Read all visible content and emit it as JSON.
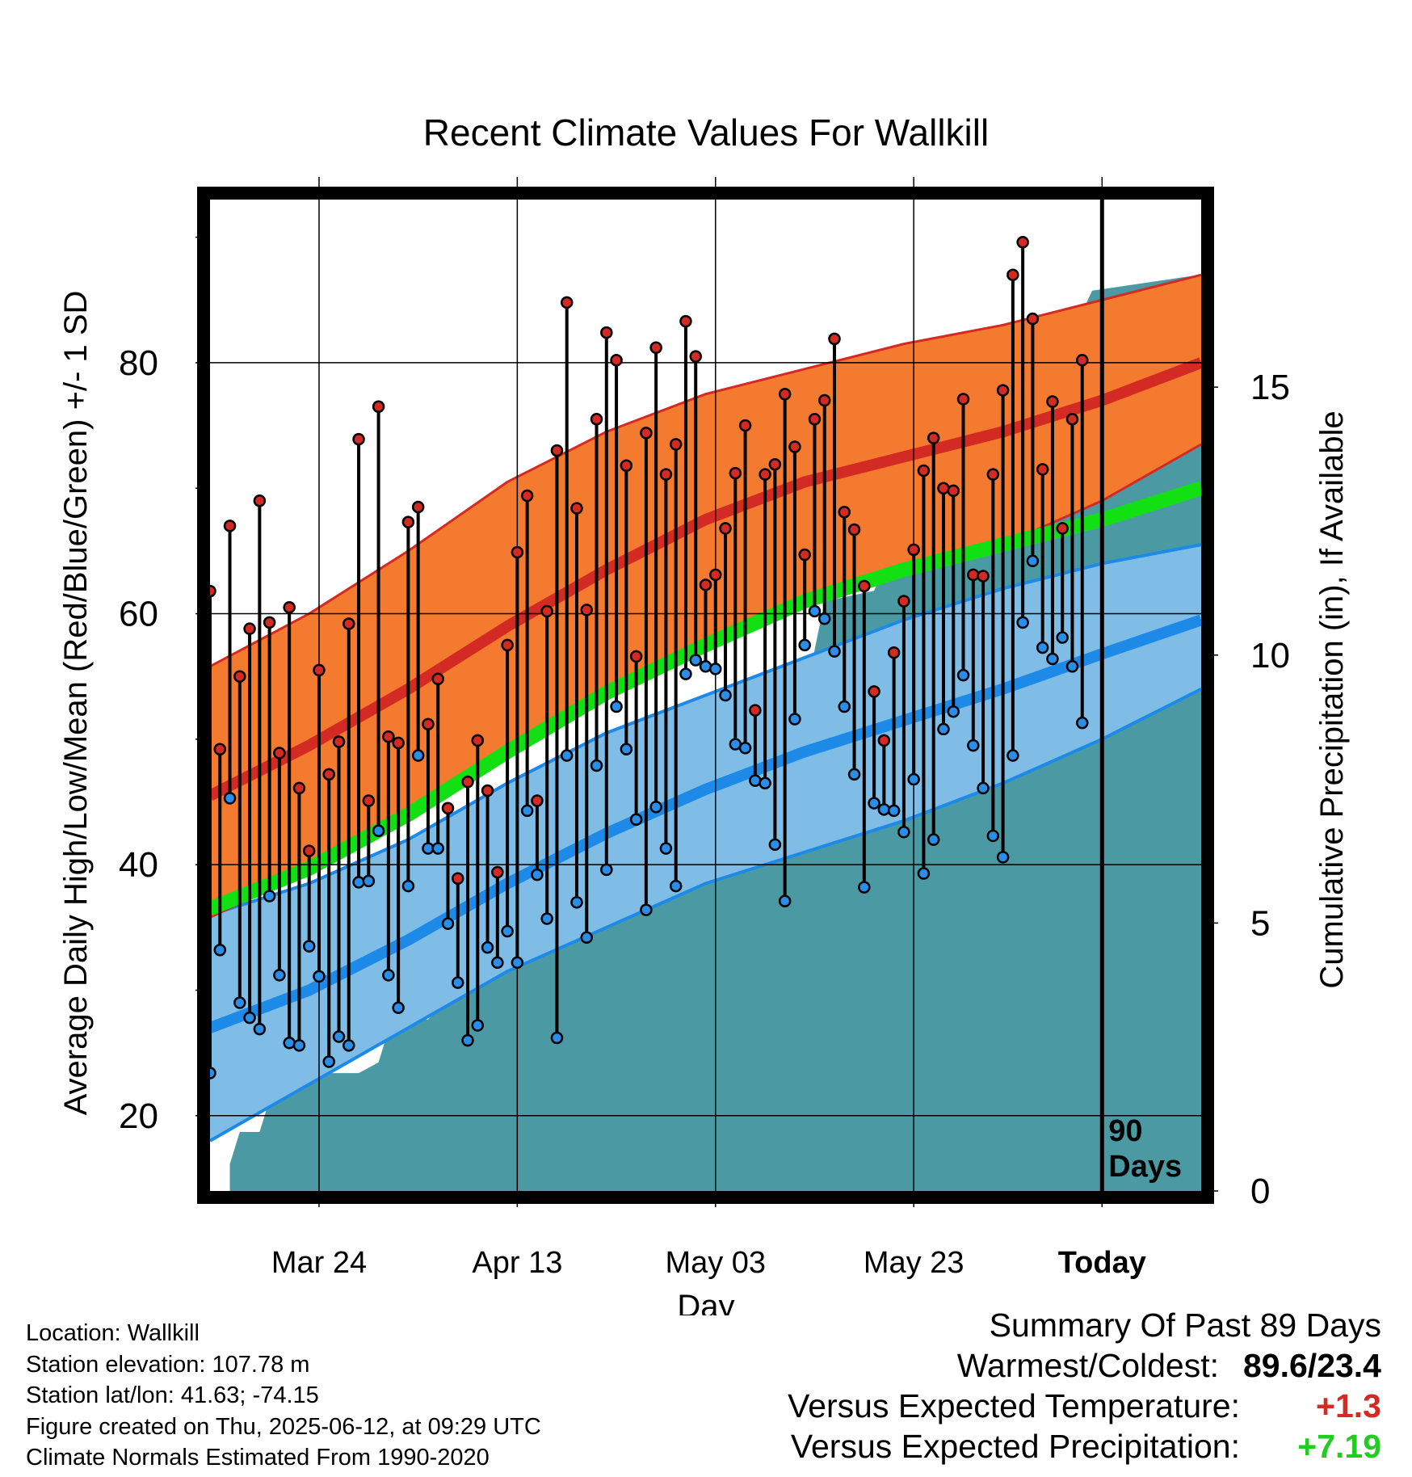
{
  "chart_data": {
    "type": "line",
    "title": "Recent Climate Values For Wallkill",
    "xlabel": "Day",
    "ylabel": "Average Daily High/Low/Mean (Red/Blue/Green) +/- 1 SD",
    "y2label": "Cumulative Precipitation (in), If Available",
    "x_tick_labels": [
      "Mar 24",
      "Apr 13",
      "May 03",
      "May 23",
      "Today"
    ],
    "x_day_start": "2025-03-13",
    "today_label": "90\nDays",
    "ylim": [
      14,
      93
    ],
    "yticks": [
      20,
      40,
      60,
      80
    ],
    "y2lim": [
      0,
      18.5
    ],
    "y2ticks": [
      0,
      5,
      10,
      15
    ],
    "grid": true,
    "colors": {
      "high_band": "#f47a30",
      "high_band_edge": "#d42a24",
      "high_mean": "#d42a24",
      "low_band": "#7fbde6",
      "low_band_edge": "#1d8ae8",
      "low_mean": "#1d8ae8",
      "mean_line": "#12e012",
      "precip": "#4b9aa3",
      "high_dot": "#d42a24",
      "low_dot": "#2a8ee8"
    },
    "normals": {
      "x": [
        0,
        10,
        20,
        30,
        40,
        50,
        60,
        70,
        80,
        90,
        100
      ],
      "high_mean": [
        45.5,
        49.5,
        54,
        59,
        63.5,
        67.5,
        70.5,
        72.5,
        74.5,
        77,
        80
      ],
      "high_upper": [
        55.8,
        60,
        65,
        70.5,
        74.5,
        77.5,
        79.5,
        81.5,
        83,
        85,
        87
      ],
      "high_lower": [
        35.8,
        39.5,
        44,
        49,
        53.5,
        57.5,
        60.5,
        63,
        65.5,
        69,
        73.5
      ],
      "mean": [
        36.5,
        39.7,
        44,
        49,
        53.7,
        57.5,
        61,
        63.5,
        65.5,
        67.5,
        70
      ],
      "low_mean": [
        27,
        30,
        34,
        38.5,
        42.5,
        46,
        49,
        51.5,
        54,
        56.8,
        59.5
      ],
      "low_upper": [
        36,
        38.5,
        42,
        46.5,
        50.5,
        53.5,
        56.5,
        59.5,
        62,
        64,
        65.5
      ],
      "low_lower": [
        18,
        22.5,
        27,
        31.5,
        35,
        38.5,
        41,
        43.5,
        46.5,
        50,
        54
      ]
    },
    "series": [
      {
        "name": "High",
        "values": [
          61.8,
          49.2,
          67,
          55,
          58.8,
          69,
          59.3,
          48.9,
          60.5,
          46.1,
          41.1,
          55.5,
          47.2,
          49.8,
          59.2,
          73.9,
          45.1,
          76.5,
          50.2,
          49.7,
          67.3,
          68.5,
          51.2,
          54.8,
          44.5,
          38.9,
          46.6,
          49.9,
          45.9,
          39.4,
          57.5,
          64.9,
          69.4,
          45.1,
          60.2,
          73,
          84.8,
          68.4,
          60.3,
          75.5,
          82.4,
          80.2,
          71.8,
          56.6,
          74.4,
          81.2,
          71.1,
          73.5,
          83.3,
          80.5,
          62.3,
          63.1,
          66.8,
          71.2,
          75,
          52.3,
          71.1,
          71.9,
          77.5,
          73.3,
          64.7,
          75.5,
          77,
          81.9,
          68.1,
          66.7,
          62.2,
          53.8,
          49.9,
          56.9,
          61,
          65.1,
          71.4,
          74,
          70,
          69.8,
          77.1,
          63.1,
          63,
          71.1,
          77.8,
          87,
          89.6,
          83.5,
          71.5,
          76.9,
          66.8,
          75.5,
          80.2
        ]
      },
      {
        "name": "Low",
        "values": [
          23.4,
          33.2,
          45.3,
          29,
          27.8,
          26.9,
          37.5,
          31.2,
          25.8,
          25.6,
          33.5,
          31.1,
          24.3,
          26.3,
          25.6,
          38.6,
          38.7,
          42.7,
          31.2,
          28.6,
          38.3,
          48.7,
          41.3,
          41.3,
          35.3,
          30.6,
          26,
          27.2,
          33.4,
          32.2,
          34.7,
          32.2,
          44.3,
          39.2,
          35.7,
          26.2,
          48.7,
          37,
          34.2,
          47.9,
          39.6,
          52.6,
          49.2,
          43.6,
          36.4,
          44.6,
          41.3,
          38.3,
          55.2,
          56.3,
          55.8,
          55.6,
          53.5,
          49.6,
          49.3,
          46.7,
          46.5,
          41.6,
          37.1,
          51.6,
          57.5,
          60.2,
          59.6,
          57,
          52.6,
          47.2,
          38.2,
          44.9,
          44.4,
          44.3,
          42.6,
          46.8,
          39.3,
          42,
          50.8,
          52.2,
          55.1,
          49.5,
          46.1,
          42.3,
          40.6,
          48.7,
          59.3,
          64.2,
          57.3,
          56.4,
          58.1,
          55.8,
          51.3
        ]
      },
      {
        "name": "Cumulative Precipitation",
        "x": [
          2,
          3,
          5,
          6,
          7,
          9,
          11,
          15,
          17,
          18,
          20,
          21,
          22,
          24,
          25,
          27,
          28,
          29,
          30,
          31,
          32,
          36,
          41,
          43,
          50,
          51,
          53,
          54,
          55,
          57,
          60,
          61,
          62,
          67,
          68,
          69,
          70,
          76,
          77,
          78,
          80,
          81,
          82,
          84,
          85,
          86,
          87,
          88,
          89,
          100
        ],
        "values": [
          0.5,
          1.1,
          1.1,
          1.7,
          2,
          2.1,
          2.2,
          2.2,
          2.4,
          3,
          3.1,
          3.2,
          3.2,
          3.6,
          3.9,
          4,
          4,
          4.3,
          5.8,
          5.8,
          5.8,
          5.9,
          5.9,
          6.3,
          6.3,
          7.5,
          7.6,
          7.6,
          7.6,
          7.8,
          9.1,
          10.1,
          11,
          11.2,
          11.6,
          11.7,
          11.8,
          12.4,
          12.5,
          12.5,
          12.5,
          13.8,
          14.2,
          14.3,
          14.5,
          14.8,
          15.6,
          16.4,
          16.8,
          17.1
        ]
      }
    ]
  },
  "info": {
    "location": "Location: Wallkill",
    "elevation": "Station elevation: 107.78 m",
    "latlon": "Station lat/lon: 41.63; -74.15",
    "created": "Figure created on Thu, 2025-06-12, at 09:29 UTC",
    "normals": "Climate Normals Estimated From 1990-2020"
  },
  "summary": {
    "title": "Summary Of Past 89 Days",
    "warm_label": "Warmest/Coldest:",
    "warm_value": "89.6/23.4",
    "temp_label": "Versus Expected Temperature:",
    "temp_value": "+1.3",
    "temp_color": "#d42a24",
    "precip_label": "Versus Expected Precipitation:",
    "precip_value": "+7.19",
    "precip_color": "#22cc22"
  }
}
